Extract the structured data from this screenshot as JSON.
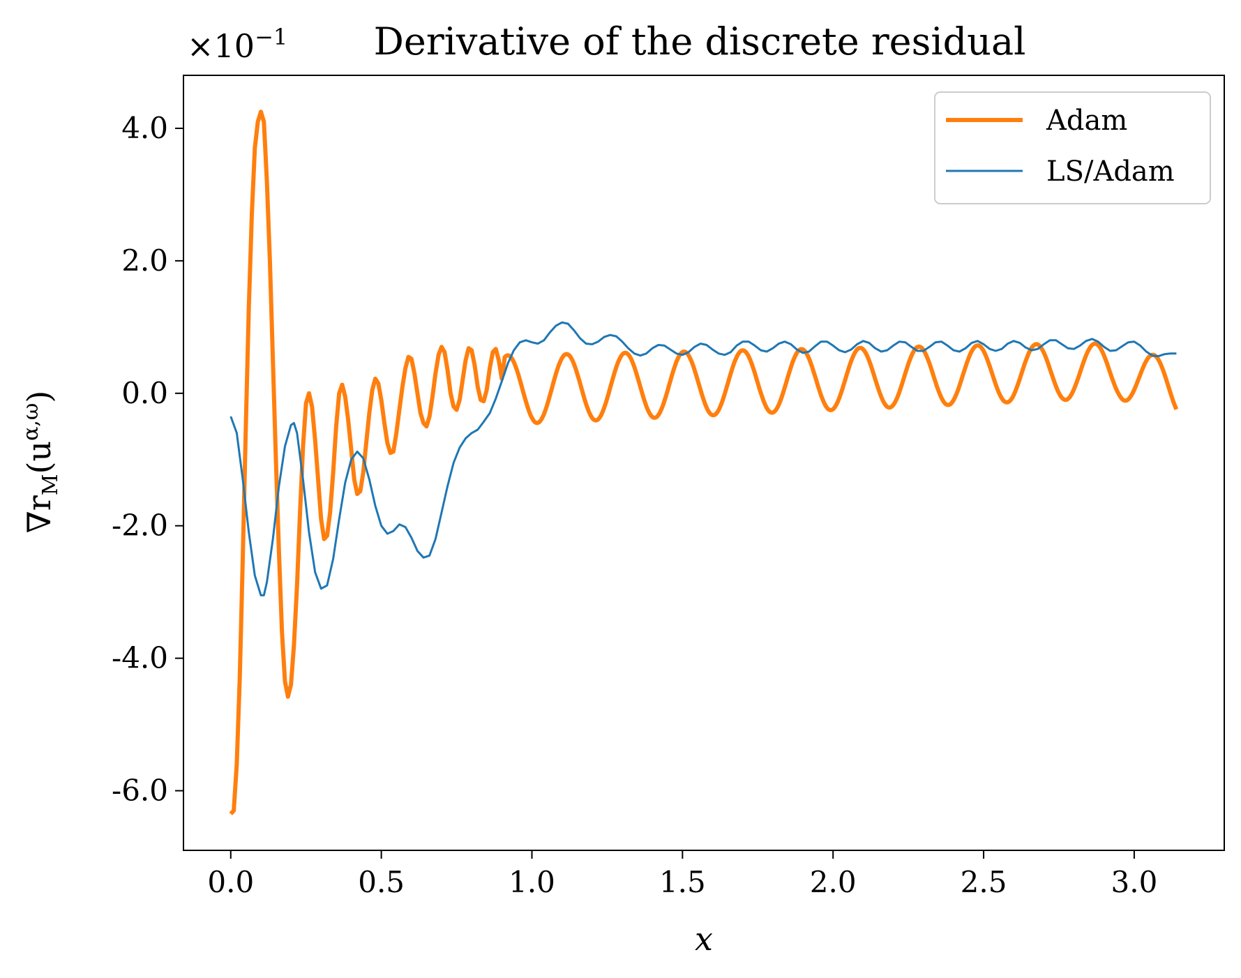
{
  "chart_data": {
    "type": "line",
    "title": "Derivative of the discrete residual",
    "xlabel": "x",
    "ylabel": "∇r_M(u^{α,ω})",
    "ylabel_parts": {
      "base": "∇r",
      "sub": "M",
      "paren_open": "(u",
      "sup": "α,ω",
      "paren_close": ")"
    },
    "offset_text": {
      "prefix": "×10",
      "exponent": "−1"
    },
    "xlim": [
      -0.157,
      3.299
    ],
    "ylim": [
      -6.9,
      4.8
    ],
    "xticks": [
      0.0,
      0.5,
      1.0,
      1.5,
      2.0,
      2.5,
      3.0
    ],
    "xtick_labels": [
      "0.0",
      "0.5",
      "1.0",
      "1.5",
      "2.0",
      "2.5",
      "3.0"
    ],
    "yticks": [
      -6.0,
      -4.0,
      -2.0,
      0.0,
      2.0,
      4.0
    ],
    "ytick_labels": [
      "-6.0",
      "-4.0",
      "-2.0",
      "0.0",
      "2.0",
      "4.0"
    ],
    "grid": false,
    "legend_position": "upper-right",
    "series": [
      {
        "name": "Adam",
        "color": "#ff7f0e",
        "width": "thick",
        "points": [
          [
            0.0,
            -6.35
          ],
          [
            0.01,
            -6.3
          ],
          [
            0.02,
            -5.6
          ],
          [
            0.03,
            -4.3
          ],
          [
            0.04,
            -2.5
          ],
          [
            0.05,
            -0.5
          ],
          [
            0.06,
            1.3
          ],
          [
            0.07,
            2.7
          ],
          [
            0.08,
            3.7
          ],
          [
            0.09,
            4.1
          ],
          [
            0.1,
            4.25
          ],
          [
            0.11,
            4.1
          ],
          [
            0.12,
            3.2
          ],
          [
            0.13,
            2.0
          ],
          [
            0.14,
            0.5
          ],
          [
            0.15,
            -1.0
          ],
          [
            0.16,
            -2.4
          ],
          [
            0.17,
            -3.6
          ],
          [
            0.18,
            -4.35
          ],
          [
            0.19,
            -4.58
          ],
          [
            0.2,
            -4.4
          ],
          [
            0.21,
            -3.8
          ],
          [
            0.22,
            -2.9
          ],
          [
            0.23,
            -1.8
          ],
          [
            0.24,
            -0.8
          ],
          [
            0.25,
            -0.15
          ],
          [
            0.26,
            0.0
          ],
          [
            0.27,
            -0.2
          ],
          [
            0.28,
            -0.7
          ],
          [
            0.29,
            -1.3
          ],
          [
            0.3,
            -1.9
          ],
          [
            0.31,
            -2.2
          ],
          [
            0.32,
            -2.15
          ],
          [
            0.33,
            -1.8
          ],
          [
            0.34,
            -1.2
          ],
          [
            0.35,
            -0.5
          ],
          [
            0.36,
            0.0
          ],
          [
            0.37,
            0.13
          ],
          [
            0.38,
            -0.05
          ],
          [
            0.39,
            -0.4
          ],
          [
            0.4,
            -0.85
          ],
          [
            0.41,
            -1.3
          ],
          [
            0.42,
            -1.52
          ],
          [
            0.43,
            -1.48
          ],
          [
            0.44,
            -1.2
          ],
          [
            0.45,
            -0.75
          ],
          [
            0.46,
            -0.3
          ],
          [
            0.47,
            0.05
          ],
          [
            0.48,
            0.22
          ],
          [
            0.49,
            0.15
          ],
          [
            0.5,
            -0.1
          ],
          [
            0.51,
            -0.45
          ],
          [
            0.52,
            -0.75
          ],
          [
            0.53,
            -0.9
          ],
          [
            0.54,
            -0.88
          ],
          [
            0.55,
            -0.6
          ],
          [
            0.56,
            -0.25
          ],
          [
            0.57,
            0.1
          ],
          [
            0.58,
            0.38
          ],
          [
            0.59,
            0.55
          ],
          [
            0.6,
            0.52
          ],
          [
            0.61,
            0.3
          ],
          [
            0.62,
            0.0
          ],
          [
            0.63,
            -0.3
          ],
          [
            0.64,
            -0.45
          ],
          [
            0.65,
            -0.5
          ],
          [
            0.66,
            -0.35
          ],
          [
            0.67,
            -0.05
          ],
          [
            0.68,
            0.3
          ],
          [
            0.69,
            0.58
          ],
          [
            0.7,
            0.7
          ],
          [
            0.71,
            0.62
          ],
          [
            0.72,
            0.35
          ],
          [
            0.73,
            0.0
          ],
          [
            0.74,
            -0.2
          ],
          [
            0.75,
            -0.25
          ],
          [
            0.76,
            -0.1
          ],
          [
            0.77,
            0.2
          ],
          [
            0.78,
            0.5
          ],
          [
            0.79,
            0.68
          ],
          [
            0.8,
            0.65
          ],
          [
            0.81,
            0.42
          ],
          [
            0.82,
            0.1
          ],
          [
            0.83,
            -0.1
          ],
          [
            0.84,
            -0.12
          ],
          [
            0.85,
            0.05
          ],
          [
            0.86,
            0.38
          ],
          [
            0.87,
            0.62
          ],
          [
            0.88,
            0.67
          ],
          [
            0.89,
            0.5
          ],
          [
            0.9,
            0.22
          ],
          [
            0.91,
            0.02
          ],
          [
            0.92,
            -0.03
          ],
          [
            0.93,
            0.12
          ],
          [
            0.94,
            0.42
          ],
          [
            0.95,
            0.63
          ],
          [
            0.96,
            0.62
          ],
          [
            0.97,
            0.42
          ],
          [
            0.98,
            0.15
          ],
          [
            0.99,
            0.0
          ],
          [
            1.0,
            0.02
          ],
          [
            1.01,
            0.25
          ],
          [
            1.02,
            0.52
          ],
          [
            1.03,
            0.63
          ],
          [
            1.04,
            0.55
          ],
          [
            1.05,
            0.3
          ],
          [
            1.06,
            0.08
          ],
          [
            1.07,
            0.02
          ],
          [
            1.08,
            0.15
          ],
          [
            1.09,
            0.43
          ],
          [
            1.1,
            0.62
          ],
          [
            1.11,
            0.65
          ],
          [
            1.12,
            0.48
          ],
          [
            1.13,
            0.25
          ],
          [
            1.14,
            0.1
          ],
          [
            1.15,
            0.1
          ],
          [
            1.16,
            0.3
          ],
          [
            1.17,
            0.58
          ],
          [
            1.18,
            0.7
          ],
          [
            1.19,
            0.62
          ],
          [
            1.2,
            0.42
          ],
          [
            1.21,
            0.22
          ],
          [
            1.22,
            0.18
          ],
          [
            1.23,
            0.32
          ],
          [
            1.24,
            0.58
          ],
          [
            1.25,
            0.75
          ],
          [
            1.26,
            0.78
          ],
          [
            1.27,
            0.6
          ],
          [
            1.28,
            0.38
          ],
          [
            1.29,
            0.28
          ],
          [
            1.3,
            0.35
          ],
          [
            1.31,
            0.6
          ],
          [
            1.32,
            0.8
          ],
          [
            1.33,
            0.82
          ],
          [
            1.34,
            0.65
          ],
          [
            1.35,
            0.42
          ],
          [
            1.36,
            0.33
          ],
          [
            1.37,
            0.42
          ],
          [
            1.38,
            0.66
          ],
          [
            1.39,
            0.8
          ],
          [
            1.4,
            0.78
          ],
          [
            1.41,
            0.6
          ],
          [
            1.42,
            0.35
          ],
          [
            1.43,
            0.25
          ],
          [
            1.44,
            0.33
          ],
          [
            1.45,
            0.58
          ],
          [
            1.46,
            0.8
          ],
          [
            1.47,
            0.78
          ],
          [
            1.48,
            0.55
          ],
          [
            1.49,
            0.3
          ],
          [
            1.5,
            0.12
          ],
          [
            1.51,
            0.13
          ],
          [
            1.52,
            0.4
          ],
          [
            1.53,
            0.4
          ],
          [
            1.54,
            0.4
          ],
          [
            1.55,
            0.0
          ]
        ]
      },
      {
        "name": "LS/Adam",
        "color": "#1f77b4",
        "width": "thin",
        "points": []
      }
    ]
  }
}
